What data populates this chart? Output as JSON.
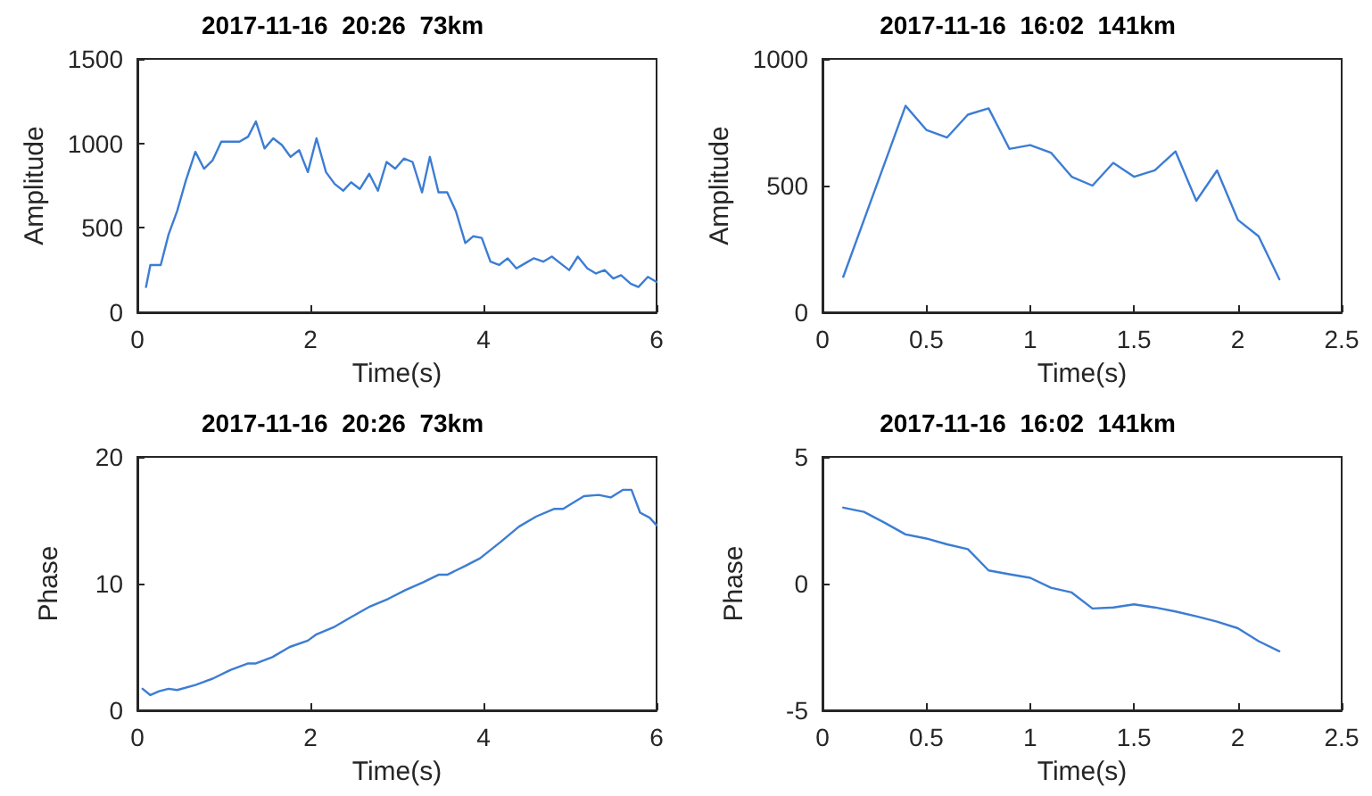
{
  "chart_data": [
    {
      "type": "line",
      "title": "2017-11-16  20:26  73km",
      "xlabel": "Time(s)",
      "ylabel": "Amplitude",
      "xlim": [
        0,
        6
      ],
      "xticks": [
        0,
        2,
        4,
        6
      ],
      "ylim": [
        0,
        1500
      ],
      "yticks": [
        0,
        500,
        1000,
        1500
      ],
      "marker": "none",
      "line_style": "solid",
      "x": [
        0.1,
        0.15,
        0.27,
        0.36,
        0.46,
        0.56,
        0.67,
        0.77,
        0.87,
        0.97,
        1.08,
        1.18,
        1.28,
        1.37,
        1.47,
        1.57,
        1.67,
        1.77,
        1.87,
        1.97,
        2.07,
        2.18,
        2.28,
        2.38,
        2.47,
        2.57,
        2.68,
        2.78,
        2.88,
        2.98,
        3.08,
        3.18,
        3.29,
        3.38,
        3.48,
        3.58,
        3.68,
        3.79,
        3.88,
        3.98,
        4.08,
        4.18,
        4.28,
        4.38,
        4.48,
        4.58,
        4.69,
        4.79,
        4.89,
        4.99,
        5.09,
        5.2,
        5.3,
        5.4,
        5.5,
        5.59,
        5.7,
        5.79,
        5.9,
        6.0
      ],
      "series": [
        {
          "color": "#3c7dd4",
          "values": [
            150,
            280,
            280,
            460,
            600,
            780,
            950,
            850,
            900,
            1010,
            1010,
            1010,
            1040,
            1130,
            970,
            1030,
            990,
            920,
            960,
            830,
            1030,
            830,
            760,
            720,
            770,
            730,
            820,
            720,
            890,
            850,
            910,
            890,
            710,
            920,
            710,
            710,
            600,
            410,
            450,
            440,
            300,
            280,
            320,
            260,
            290,
            320,
            300,
            330,
            290,
            250,
            330,
            260,
            230,
            250,
            200,
            220,
            170,
            150,
            210,
            180
          ]
        }
      ]
    },
    {
      "type": "line",
      "title": "2017-11-16  16:02  141km",
      "xlabel": "Time(s)",
      "ylabel": "Amplitude",
      "xlim": [
        0,
        2.5
      ],
      "xticks": [
        0,
        0.5,
        1,
        1.5,
        2,
        2.5
      ],
      "ylim": [
        0,
        1000
      ],
      "yticks": [
        0,
        500,
        1000
      ],
      "marker": "none",
      "line_style": "solid",
      "x": [
        0.1,
        0.4,
        0.5,
        0.6,
        0.7,
        0.8,
        0.9,
        1.0,
        1.1,
        1.2,
        1.3,
        1.4,
        1.5,
        1.6,
        1.7,
        1.8,
        1.9,
        2.0,
        2.1,
        2.2
      ],
      "series": [
        {
          "color": "#3c7dd4",
          "values": [
            140,
            815,
            720,
            690,
            780,
            805,
            645,
            660,
            630,
            535,
            500,
            590,
            535,
            560,
            635,
            440,
            560,
            365,
            300,
            130
          ]
        }
      ]
    },
    {
      "type": "line",
      "title": "2017-11-16  20:26  73km",
      "xlabel": "Time(s)",
      "ylabel": "Phase",
      "xlim": [
        0,
        6
      ],
      "xticks": [
        0,
        2,
        4,
        6
      ],
      "ylim": [
        0,
        20
      ],
      "yticks": [
        0,
        10,
        20
      ],
      "marker": "none",
      "line_style": "solid",
      "x": [
        0.06,
        0.15,
        0.25,
        0.36,
        0.46,
        0.67,
        0.87,
        1.08,
        1.28,
        1.37,
        1.56,
        1.76,
        1.97,
        2.07,
        2.28,
        2.48,
        2.69,
        2.9,
        3.1,
        3.3,
        3.48,
        3.58,
        3.79,
        3.96,
        4.2,
        4.41,
        4.61,
        4.82,
        4.92,
        5.16,
        5.33,
        5.47,
        5.61,
        5.71,
        5.81,
        5.92,
        6.0
      ],
      "series": [
        {
          "color": "#3c7dd4",
          "values": [
            1.7,
            1.2,
            1.5,
            1.7,
            1.6,
            2.0,
            2.5,
            3.2,
            3.7,
            3.7,
            4.2,
            5.0,
            5.5,
            6.0,
            6.6,
            7.4,
            8.2,
            8.8,
            9.5,
            10.1,
            10.7,
            10.7,
            11.4,
            12.0,
            13.3,
            14.5,
            15.3,
            15.9,
            15.9,
            16.9,
            17.0,
            16.8,
            17.4,
            17.4,
            15.6,
            15.2,
            14.6
          ]
        }
      ]
    },
    {
      "type": "line",
      "title": "2017-11-16  16:02  141km",
      "xlabel": "Time(s)",
      "ylabel": "Phase",
      "xlim": [
        0,
        2.5
      ],
      "xticks": [
        0,
        0.5,
        1,
        1.5,
        2,
        2.5
      ],
      "ylim": [
        -5,
        5
      ],
      "yticks": [
        -5,
        0,
        5
      ],
      "marker": "none",
      "line_style": "solid",
      "x": [
        0.1,
        0.2,
        0.3,
        0.4,
        0.5,
        0.6,
        0.7,
        0.8,
        0.9,
        1.0,
        1.1,
        1.2,
        1.3,
        1.4,
        1.5,
        1.6,
        1.7,
        1.8,
        1.9,
        2.0,
        2.1,
        2.2
      ],
      "series": [
        {
          "color": "#3c7dd4",
          "values": [
            3.0,
            2.83,
            2.4,
            1.94,
            1.78,
            1.55,
            1.36,
            0.52,
            0.37,
            0.23,
            -0.16,
            -0.35,
            -0.98,
            -0.94,
            -0.82,
            -0.94,
            -1.1,
            -1.29,
            -1.5,
            -1.76,
            -2.27,
            -2.67
          ]
        }
      ]
    }
  ]
}
